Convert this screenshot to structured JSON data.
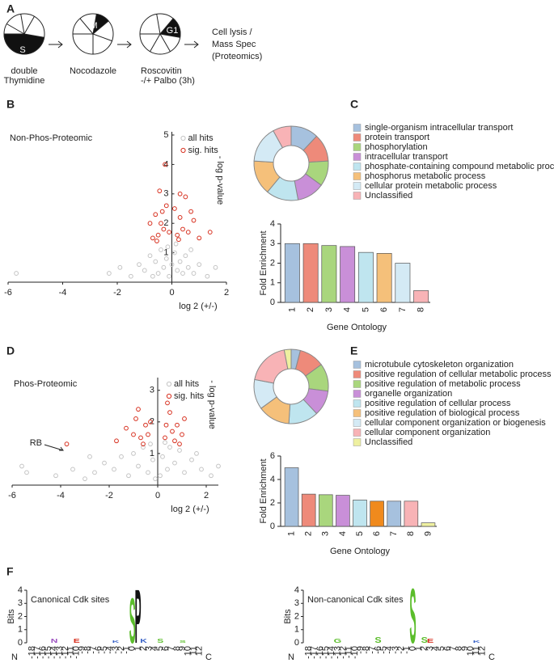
{
  "panel_labels": [
    "A",
    "B",
    "C",
    "D",
    "E",
    "F"
  ],
  "diagram": {
    "pie_labels": [
      "S",
      "M",
      "G1"
    ],
    "steps": [
      [
        "double",
        "Thymidine"
      ],
      [
        "Nocodazole"
      ],
      [
        "Roscovitin",
        "-/+ Palbo (3h)"
      ],
      [
        "Cell lysis /",
        "Mass Spec",
        "(Proteomics)"
      ]
    ]
  },
  "chart_data": [
    {
      "type": "scatter",
      "title": "Non-Phos-Proteomic",
      "xlabel": "log 2 (+/-)",
      "ylabel": "- log p-value",
      "xlim": [
        -6,
        2
      ],
      "ylim": [
        0,
        5
      ],
      "xticks": [
        -6,
        -4,
        -2,
        0,
        2
      ],
      "yticks": [
        1,
        2,
        3,
        4,
        5
      ],
      "series": [
        {
          "name": "all hits",
          "color": "#c4c4c4",
          "x": [
            -5.7,
            -2.3,
            -1.9,
            -1.5,
            -1.2,
            -1.0,
            -0.8,
            -0.6,
            -0.5,
            -0.4,
            -0.3,
            -0.2,
            -0.1,
            0,
            0.1,
            0.2,
            0.3,
            0.4,
            0.5,
            0.6,
            0.8,
            1.0,
            1.3,
            1.6,
            0.15,
            -0.15,
            -0.7,
            0.7
          ],
          "values": [
            0.3,
            0.3,
            0.5,
            0.2,
            0.6,
            0.4,
            0.9,
            0.7,
            0.3,
            1.1,
            0.5,
            0.8,
            0.2,
            0.6,
            1.0,
            0.4,
            0.7,
            0.3,
            0.9,
            0.5,
            0.3,
            0.6,
            0.2,
            0.5,
            1.3,
            1.2,
            0.2,
            1.1
          ]
        },
        {
          "name": "sig. hits",
          "color": "#d7301f",
          "x": [
            -0.5,
            -0.4,
            -0.3,
            -0.6,
            -0.2,
            -0.1,
            -0.45,
            -0.25,
            -0.7,
            -0.8,
            -0.35,
            0.2,
            0.3,
            0.4,
            0.5,
            0.3,
            0.6,
            0.8,
            1.0,
            1.4,
            0.1,
            -0.55,
            0.25,
            0.7
          ],
          "values": [
            1.6,
            2.0,
            1.8,
            2.3,
            2.6,
            1.7,
            3.1,
            4.0,
            1.5,
            2.0,
            2.4,
            1.6,
            2.2,
            1.8,
            2.9,
            3.0,
            1.7,
            2.1,
            1.5,
            1.7,
            2.5,
            1.4,
            1.45,
            2.4
          ]
        }
      ]
    },
    {
      "type": "donut",
      "categories": [
        "single-organism intracellular transport",
        "protein transport",
        "phosphorylation",
        "intracellular transport",
        "phosphate-containing compound metabolic process",
        "phosphorus metabolic process",
        "cellular protein metabolic process",
        "Unclassified"
      ],
      "values": [
        12,
        12,
        11,
        12,
        14,
        15,
        16,
        8
      ],
      "colors": [
        "#a6c1de",
        "#ee8a7a",
        "#a9d67d",
        "#c98fd8",
        "#bfe5ef",
        "#f5c07a",
        "#d4eaf5",
        "#f8b3b6"
      ]
    },
    {
      "type": "bar",
      "xlabel": "Gene Ontology",
      "ylabel": "Fold Enrichment",
      "categories": [
        "1",
        "2",
        "3",
        "4",
        "5",
        "6",
        "7",
        "8"
      ],
      "values": [
        3.0,
        3.0,
        2.9,
        2.85,
        2.55,
        2.5,
        2.0,
        0.6
      ],
      "colors": [
        "#a6c1de",
        "#ee8a7a",
        "#a9d67d",
        "#c98fd8",
        "#bfe5ef",
        "#f5c07a",
        "#d4eaf5",
        "#f8b3b6"
      ],
      "ylim": [
        0,
        4
      ],
      "yticks": [
        0,
        1,
        2,
        3,
        4
      ]
    },
    {
      "type": "scatter",
      "title": "Phos-Proteomic",
      "xlabel": "log 2 (+/-)",
      "ylabel": "- log p-value",
      "annotations": [
        "RB"
      ],
      "xlim": [
        -6,
        2.5
      ],
      "ylim": [
        0,
        3.3
      ],
      "xticks": [
        -6,
        -4,
        -2,
        0,
        2
      ],
      "yticks": [
        1,
        2,
        3
      ],
      "series": [
        {
          "name": "all hits",
          "color": "#c4c4c4",
          "x": [
            -5.6,
            -5.4,
            -4.2,
            -3.5,
            -3.0,
            -2.6,
            -2.2,
            -1.8,
            -1.5,
            -1.2,
            -1.0,
            -0.8,
            -0.6,
            -0.4,
            -0.2,
            -0.1,
            0.1,
            0.2,
            0.4,
            0.5,
            0.7,
            0.9,
            1.1,
            1.4,
            1.8,
            2.2,
            2.5,
            -0.3,
            0.3,
            -2.8,
            1.6
          ],
          "values": [
            0.6,
            0.4,
            0.3,
            0.5,
            0.2,
            0.4,
            0.7,
            0.5,
            0.9,
            0.3,
            1.0,
            0.6,
            1.2,
            0.4,
            0.8,
            0.2,
            0.3,
            0.9,
            0.5,
            1.2,
            0.7,
            1.1,
            0.4,
            0.8,
            0.5,
            0.3,
            0.6,
            1.3,
            1.35,
            0.9,
            1.0
          ]
        },
        {
          "name": "sig. hits",
          "color": "#d7301f",
          "x": [
            -1.3,
            -1.0,
            -0.9,
            -0.7,
            -0.8,
            -0.5,
            -0.6,
            -0.4,
            -1.7,
            -0.3,
            0.3,
            0.5,
            0.4,
            0.6,
            0.7,
            0.8,
            0.9,
            1.0,
            1.1,
            0.35,
            -3.75
          ],
          "values": [
            1.8,
            1.6,
            2.1,
            1.5,
            2.4,
            1.9,
            1.3,
            1.6,
            1.4,
            2.0,
            1.5,
            2.3,
            2.6,
            1.7,
            1.4,
            1.9,
            1.3,
            1.6,
            2.1,
            1.9,
            1.3
          ]
        }
      ]
    },
    {
      "type": "donut",
      "categories": [
        "microtubule cytoskeleton organization",
        "positive regulation of cellular metabolic process",
        "positive regulation of metabolic process",
        "organelle organization",
        "positive regulation of cellular process",
        "positive regulation of biological process",
        "cellular component organization or biogenesis",
        "cellular component organization",
        "Unclassified"
      ],
      "values": [
        4,
        11,
        12,
        11,
        13,
        14,
        13,
        19,
        3
      ],
      "colors": [
        "#a6c1de",
        "#ee8a7a",
        "#a9d67d",
        "#c98fd8",
        "#bfe5ef",
        "#f5c07a",
        "#d4eaf5",
        "#f8b3b6",
        "#eef0a0"
      ]
    },
    {
      "type": "bar",
      "xlabel": "Gene Ontology",
      "ylabel": "Fold Enrichment",
      "categories": [
        "1",
        "2",
        "3",
        "4",
        "5",
        "6",
        "7",
        "8",
        "9"
      ],
      "values": [
        5.0,
        2.75,
        2.7,
        2.65,
        2.25,
        2.15,
        2.15,
        2.15,
        0.3
      ],
      "colors": [
        "#a6c1de",
        "#ee8a7a",
        "#a9d67d",
        "#c98fd8",
        "#bfe5ef",
        "#f08a1d",
        "#a6c1de",
        "#f8b3b6",
        "#eef0a0"
      ],
      "ylim": [
        0,
        6
      ],
      "yticks": [
        0,
        2,
        4,
        6
      ]
    },
    {
      "type": "logo",
      "title": "Canonical Cdk sites",
      "ylabel": "Bits",
      "ends": [
        "N",
        "C"
      ],
      "ylim": [
        0,
        4
      ],
      "yticks": [
        0,
        1,
        2,
        3,
        4
      ],
      "xticks": [
        -18,
        -17,
        -16,
        -15,
        -14,
        -13,
        -12,
        -11,
        -10,
        -9,
        -8,
        -7,
        -6,
        -5,
        -4,
        -3,
        -2,
        -1,
        0,
        1,
        2,
        3,
        4,
        5,
        6,
        7,
        8,
        9,
        10,
        11,
        12
      ],
      "letters": [
        "N",
        "E",
        "K",
        "S",
        "P",
        "K",
        "S",
        "S"
      ],
      "positions": [
        -14,
        -10,
        -3,
        0,
        1,
        2,
        5,
        9
      ],
      "values": [
        0.3,
        0.3,
        0.2,
        3.2,
        3.8,
        0.3,
        0.3,
        0.2
      ],
      "colors": [
        "#9b4fc0",
        "#d7301f",
        "#3a63c7",
        "#5bbd2b",
        "#111111",
        "#3a63c7",
        "#5bbd2b",
        "#5bbd2b"
      ]
    },
    {
      "type": "logo",
      "title": "Non-canonical Cdk sites",
      "ylabel": "Bits",
      "ends": [
        "N",
        "C"
      ],
      "ylim": [
        0,
        4
      ],
      "yticks": [
        0,
        1,
        2,
        3,
        4
      ],
      "xticks": [
        -18,
        -17,
        -16,
        -15,
        -14,
        -13,
        -12,
        -11,
        -10,
        -9,
        -8,
        -7,
        -6,
        -5,
        -4,
        -3,
        -2,
        -1,
        0,
        1,
        2,
        3,
        4,
        5,
        6,
        7,
        8,
        9,
        10,
        11,
        12
      ],
      "letters": [
        "G",
        "S",
        "S",
        "S",
        "E",
        "K"
      ],
      "positions": [
        -13,
        -6,
        0,
        2,
        3,
        11
      ],
      "values": [
        0.3,
        0.4,
        3.9,
        0.4,
        0.3,
        0.2
      ],
      "colors": [
        "#5bbd2b",
        "#5bbd2b",
        "#5bbd2b",
        "#5bbd2b",
        "#d7301f",
        "#3a63c7"
      ]
    }
  ]
}
